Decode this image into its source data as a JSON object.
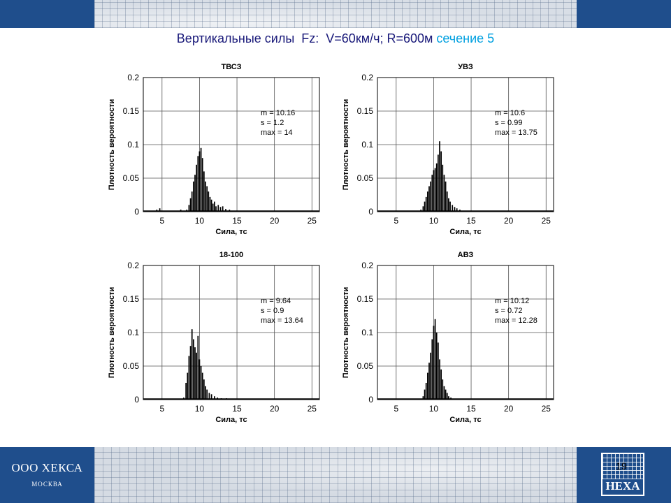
{
  "slide": {
    "title_main": "Вертикальные силы  Fz:  V=60км/ч; R=600м ",
    "title_accent": "сечение 5",
    "page_number": "19"
  },
  "footer": {
    "company": "ООО ХЕКСА",
    "city": "МОСКВА",
    "logo_text": "HEXA"
  },
  "colors": {
    "banner": "#1f4e8c",
    "title": "#1a1a7a",
    "accent": "#00a0e0",
    "bars": "#000000"
  },
  "chart_data": [
    {
      "type": "bar",
      "title": "ТВСЗ",
      "xlabel": "Сила, тс",
      "ylabel": "Плотность вероятности",
      "xlim": [
        2.5,
        26
      ],
      "ylim": [
        0,
        0.2
      ],
      "xticks": [
        5,
        10,
        15,
        20,
        25
      ],
      "yticks": [
        0,
        0.05,
        0.1,
        0.15,
        0.2
      ],
      "grid": true,
      "stats": [
        "m = 10.16",
        "s  = 1.2",
        "max  = 14"
      ],
      "bins": [
        [
          4.3,
          0.003
        ],
        [
          4.7,
          0.005
        ],
        [
          7.5,
          0.003
        ],
        [
          8.3,
          0.003
        ],
        [
          8.6,
          0.01
        ],
        [
          8.8,
          0.02
        ],
        [
          9.0,
          0.03
        ],
        [
          9.2,
          0.045
        ],
        [
          9.4,
          0.055
        ],
        [
          9.6,
          0.07
        ],
        [
          9.8,
          0.083
        ],
        [
          10.0,
          0.09
        ],
        [
          10.2,
          0.095
        ],
        [
          10.4,
          0.08
        ],
        [
          10.6,
          0.06
        ],
        [
          10.8,
          0.045
        ],
        [
          11.0,
          0.038
        ],
        [
          11.2,
          0.03
        ],
        [
          11.4,
          0.022
        ],
        [
          11.6,
          0.018
        ],
        [
          11.8,
          0.012
        ],
        [
          12.0,
          0.015
        ],
        [
          12.2,
          0.008
        ],
        [
          12.5,
          0.01
        ],
        [
          12.8,
          0.007
        ],
        [
          13.1,
          0.008
        ],
        [
          13.5,
          0.004
        ],
        [
          14.0,
          0.003
        ]
      ]
    },
    {
      "type": "bar",
      "title": "УВЗ",
      "xlabel": "Сила, тс",
      "ylabel": "Плотность вероятности",
      "xlim": [
        2.5,
        26
      ],
      "ylim": [
        0,
        0.2
      ],
      "xticks": [
        5,
        10,
        15,
        20,
        25
      ],
      "yticks": [
        0,
        0.05,
        0.1,
        0.15,
        0.2
      ],
      "grid": true,
      "stats": [
        "m = 10.6",
        "s  = 0.99",
        "max  = 13.75"
      ],
      "bins": [
        [
          8.3,
          0.003
        ],
        [
          8.6,
          0.008
        ],
        [
          8.8,
          0.015
        ],
        [
          9.0,
          0.022
        ],
        [
          9.2,
          0.03
        ],
        [
          9.4,
          0.038
        ],
        [
          9.6,
          0.045
        ],
        [
          9.8,
          0.055
        ],
        [
          10.0,
          0.062
        ],
        [
          10.2,
          0.065
        ],
        [
          10.4,
          0.072
        ],
        [
          10.6,
          0.085
        ],
        [
          10.8,
          0.105
        ],
        [
          11.0,
          0.09
        ],
        [
          11.2,
          0.07
        ],
        [
          11.4,
          0.055
        ],
        [
          11.6,
          0.045
        ],
        [
          11.8,
          0.03
        ],
        [
          12.0,
          0.02
        ],
        [
          12.2,
          0.015
        ],
        [
          12.5,
          0.01
        ],
        [
          12.8,
          0.007
        ],
        [
          13.1,
          0.005
        ],
        [
          13.5,
          0.003
        ]
      ]
    },
    {
      "type": "bar",
      "title": "18-100",
      "xlabel": "Сила, тс",
      "ylabel": "Плотность вероятности",
      "xlim": [
        2.5,
        26
      ],
      "ylim": [
        0,
        0.2
      ],
      "xticks": [
        5,
        10,
        15,
        20,
        25
      ],
      "yticks": [
        0,
        0.05,
        0.1,
        0.15,
        0.2
      ],
      "grid": true,
      "stats": [
        "m = 9.64",
        "s  = 0.9",
        "max  = 13.64"
      ],
      "bins": [
        [
          7.9,
          0.003
        ],
        [
          8.2,
          0.025
        ],
        [
          8.4,
          0.04
        ],
        [
          8.6,
          0.065
        ],
        [
          8.8,
          0.08
        ],
        [
          9.0,
          0.105
        ],
        [
          9.2,
          0.09
        ],
        [
          9.4,
          0.078
        ],
        [
          9.6,
          0.07
        ],
        [
          9.8,
          0.095
        ],
        [
          10.0,
          0.06
        ],
        [
          10.2,
          0.05
        ],
        [
          10.4,
          0.04
        ],
        [
          10.6,
          0.03
        ],
        [
          10.8,
          0.02
        ],
        [
          11.0,
          0.015
        ],
        [
          11.3,
          0.01
        ],
        [
          11.6,
          0.008
        ],
        [
          12.0,
          0.005
        ],
        [
          12.4,
          0.003
        ],
        [
          12.9,
          0.002
        ],
        [
          13.6,
          0.002
        ]
      ]
    },
    {
      "type": "bar",
      "title": "АВЗ",
      "xlabel": "Сила, тс",
      "ylabel": "Плотность вероятности",
      "xlim": [
        2.5,
        26
      ],
      "ylim": [
        0,
        0.2
      ],
      "xticks": [
        5,
        10,
        15,
        20,
        25
      ],
      "yticks": [
        0,
        0.05,
        0.1,
        0.15,
        0.2
      ],
      "grid": true,
      "stats": [
        "m = 10.12",
        "s  = 0.72",
        "max  = 12.28"
      ],
      "bins": [
        [
          8.6,
          0.005
        ],
        [
          8.8,
          0.015
        ],
        [
          9.0,
          0.025
        ],
        [
          9.2,
          0.04
        ],
        [
          9.4,
          0.055
        ],
        [
          9.6,
          0.07
        ],
        [
          9.8,
          0.09
        ],
        [
          10.0,
          0.11
        ],
        [
          10.2,
          0.12
        ],
        [
          10.4,
          0.1
        ],
        [
          10.6,
          0.085
        ],
        [
          10.8,
          0.06
        ],
        [
          11.0,
          0.045
        ],
        [
          11.2,
          0.03
        ],
        [
          11.4,
          0.02
        ],
        [
          11.6,
          0.015
        ],
        [
          11.8,
          0.01
        ],
        [
          12.0,
          0.005
        ],
        [
          12.3,
          0.003
        ]
      ]
    }
  ]
}
